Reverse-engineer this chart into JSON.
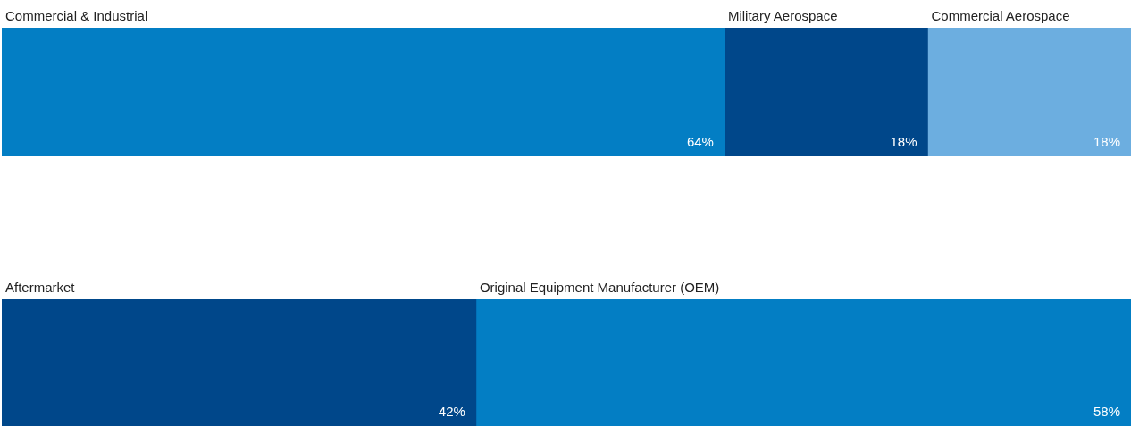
{
  "chart_data": [
    {
      "type": "bar",
      "orientation": "horizontal",
      "stacked": true,
      "categories": [
        null
      ],
      "legend": false,
      "series": [
        {
          "name": "Commercial & Industrial",
          "color": "#037ec4",
          "values": [
            64
          ],
          "value_labels": [
            "64%"
          ]
        },
        {
          "name": "Military Aerospace",
          "color": "#00478a",
          "values": [
            18
          ],
          "value_labels": [
            "18%"
          ]
        },
        {
          "name": "Commercial Aerospace",
          "color": "#6caee0",
          "values": [
            18
          ],
          "value_labels": [
            "18%"
          ]
        }
      ]
    },
    {
      "type": "bar",
      "orientation": "horizontal",
      "stacked": true,
      "categories": [
        null
      ],
      "legend": false,
      "series": [
        {
          "name": "Aftermarket",
          "color": "#00478a",
          "values": [
            42
          ],
          "value_labels": [
            "42%"
          ]
        },
        {
          "name": "Original Equipment Manufacturer (OEM)",
          "color": "#037ec4",
          "values": [
            58
          ],
          "value_labels": [
            "58%"
          ]
        }
      ]
    }
  ]
}
